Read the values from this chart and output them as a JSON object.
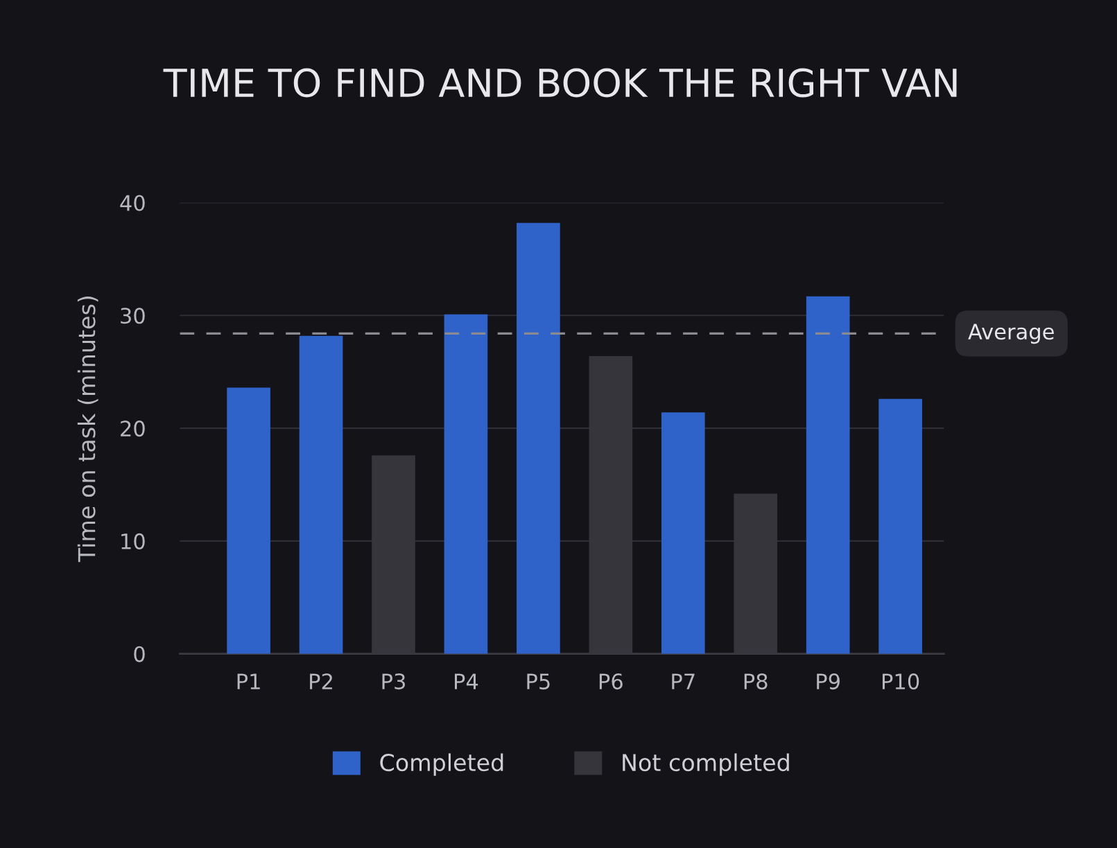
{
  "chart_data": {
    "type": "bar",
    "title": "TIME TO FIND AND BOOK THE RIGHT VAN",
    "ylabel": "Time on task (minutes)",
    "categories": [
      "P1",
      "P2",
      "P3",
      "P4",
      "P5",
      "P6",
      "P7",
      "P8",
      "P9",
      "P10"
    ],
    "series": [
      {
        "name": "Completed",
        "color": "#3063c9",
        "values": [
          23.6,
          28.2,
          null,
          30.1,
          38.2,
          null,
          21.4,
          null,
          31.7,
          22.6
        ]
      },
      {
        "name": "Not completed",
        "color": "#35353b",
        "values": [
          null,
          null,
          17.6,
          null,
          null,
          26.4,
          null,
          14.2,
          null,
          null
        ]
      }
    ],
    "ylim": [
      0,
      40
    ],
    "yticks": [
      0,
      10,
      20,
      30,
      40
    ],
    "grid": "y",
    "legend": "bottom",
    "ref_lines": [
      {
        "axis": "y",
        "value": 28.4,
        "label": "Average",
        "color": "#8a8a90",
        "line_style": "dashed"
      }
    ]
  }
}
